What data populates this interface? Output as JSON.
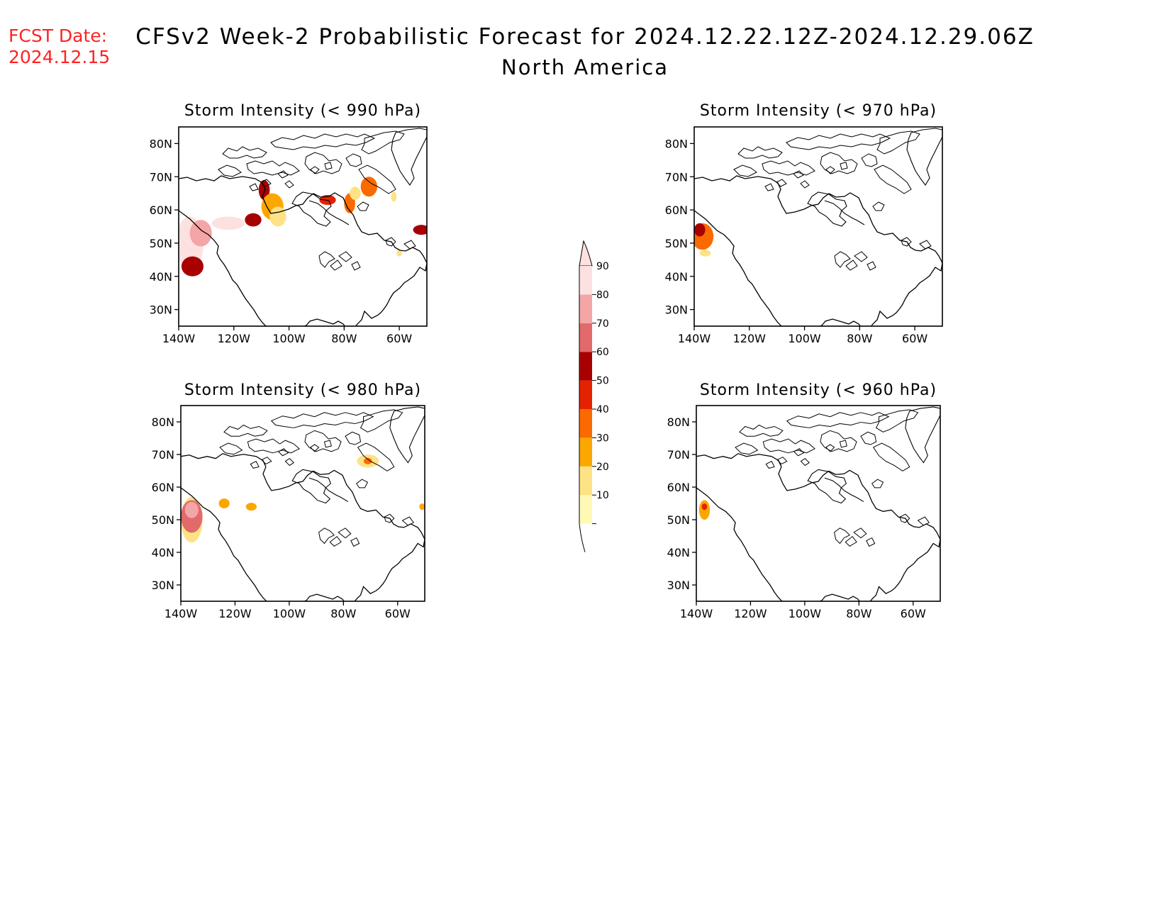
{
  "header": {
    "fcst_label": "FCST Date:",
    "fcst_date": "2024.12.15",
    "title": "CFSv2 Week-2 Probabilistic Forecast for 2024.12.22.12Z-2024.12.29.06Z",
    "subtitle": "North America"
  },
  "axes": {
    "lat_labels": [
      "80N",
      "70N",
      "60N",
      "50N",
      "40N",
      "30N"
    ],
    "lat_values": [
      80,
      70,
      60,
      50,
      40,
      30
    ],
    "lon_labels": [
      "140W",
      "120W",
      "100W",
      "80W",
      "60W"
    ],
    "lon_values": [
      -140,
      -120,
      -100,
      -80,
      -60
    ],
    "lon_range": [
      -140,
      -50
    ],
    "lat_range": [
      25,
      85
    ]
  },
  "panels": [
    {
      "title": "Storm Intensity (< 990 hPa)",
      "blobs": [
        {
          "lon": -136,
          "lat": 50,
          "rx": 5,
          "ry": 8,
          "p": 90
        },
        {
          "lon": -132,
          "lat": 53,
          "rx": 4,
          "ry": 4,
          "p": 80
        },
        {
          "lon": -135,
          "lat": 43,
          "rx": 4,
          "ry": 3,
          "p": 60
        },
        {
          "lon": -122,
          "lat": 56,
          "rx": 6,
          "ry": 2,
          "p": 90
        },
        {
          "lon": -113,
          "lat": 57,
          "rx": 3,
          "ry": 2,
          "p": 60
        },
        {
          "lon": -109,
          "lat": 66,
          "rx": 2,
          "ry": 3,
          "p": 60
        },
        {
          "lon": -106,
          "lat": 61,
          "rx": 4,
          "ry": 4,
          "p": 30
        },
        {
          "lon": -104,
          "lat": 58,
          "rx": 3,
          "ry": 3,
          "p": 20
        },
        {
          "lon": -86,
          "lat": 63,
          "rx": 3,
          "ry": 1.5,
          "p": 50
        },
        {
          "lon": -78,
          "lat": 62,
          "rx": 2,
          "ry": 3,
          "p": 40
        },
        {
          "lon": -71,
          "lat": 67,
          "rx": 3,
          "ry": 3,
          "p": 40
        },
        {
          "lon": -76,
          "lat": 65,
          "rx": 2,
          "ry": 2,
          "p": 20
        },
        {
          "lon": -52,
          "lat": 54,
          "rx": 3,
          "ry": 1.5,
          "p": 60
        },
        {
          "lon": -62,
          "lat": 64,
          "rx": 1,
          "ry": 1.5,
          "p": 20
        },
        {
          "lon": -60,
          "lat": 47,
          "rx": 1,
          "ry": 1,
          "p": 20
        }
      ]
    },
    {
      "title": "Storm Intensity (< 970 hPa)",
      "blobs": [
        {
          "lon": -137,
          "lat": 52,
          "rx": 4,
          "ry": 4,
          "p": 40
        },
        {
          "lon": -138,
          "lat": 54,
          "rx": 2,
          "ry": 2,
          "p": 60
        },
        {
          "lon": -136,
          "lat": 47,
          "rx": 2,
          "ry": 1,
          "p": 20
        }
      ]
    },
    {
      "title": "Storm Intensity (< 980 hPa)",
      "blobs": [
        {
          "lon": -136,
          "lat": 50,
          "rx": 4,
          "ry": 7,
          "p": 20
        },
        {
          "lon": -136,
          "lat": 51,
          "rx": 4,
          "ry": 5,
          "p": 70
        },
        {
          "lon": -136,
          "lat": 53,
          "rx": 2.5,
          "ry": 2.5,
          "p": 80
        },
        {
          "lon": -124,
          "lat": 55,
          "rx": 2,
          "ry": 1.5,
          "p": 30
        },
        {
          "lon": -114,
          "lat": 54,
          "rx": 2,
          "ry": 1.2,
          "p": 30
        },
        {
          "lon": -71,
          "lat": 68,
          "rx": 4,
          "ry": 2,
          "p": 20
        },
        {
          "lon": -71,
          "lat": 68,
          "rx": 1.5,
          "ry": 1,
          "p": 40
        },
        {
          "lon": -51,
          "lat": 54,
          "rx": 1,
          "ry": 1,
          "p": 30
        }
      ]
    },
    {
      "title": "Storm Intensity (< 960 hPa)",
      "blobs": [
        {
          "lon": -137,
          "lat": 53,
          "rx": 2,
          "ry": 3,
          "p": 30
        },
        {
          "lon": -137,
          "lat": 54,
          "rx": 1,
          "ry": 1,
          "p": 50
        }
      ]
    }
  ],
  "colorbar": {
    "labels": [
      "10",
      "20",
      "30",
      "40",
      "50",
      "60",
      "70",
      "80",
      "90"
    ],
    "thresholds": [
      10,
      20,
      30,
      40,
      50,
      60,
      70,
      80,
      90
    ],
    "colors": [
      "#fff9b5",
      "#fde286",
      "#fca600",
      "#fb6a00",
      "#e52200",
      "#a80000",
      "#e26a6a",
      "#f4a5a5",
      "#fde1e1"
    ]
  }
}
